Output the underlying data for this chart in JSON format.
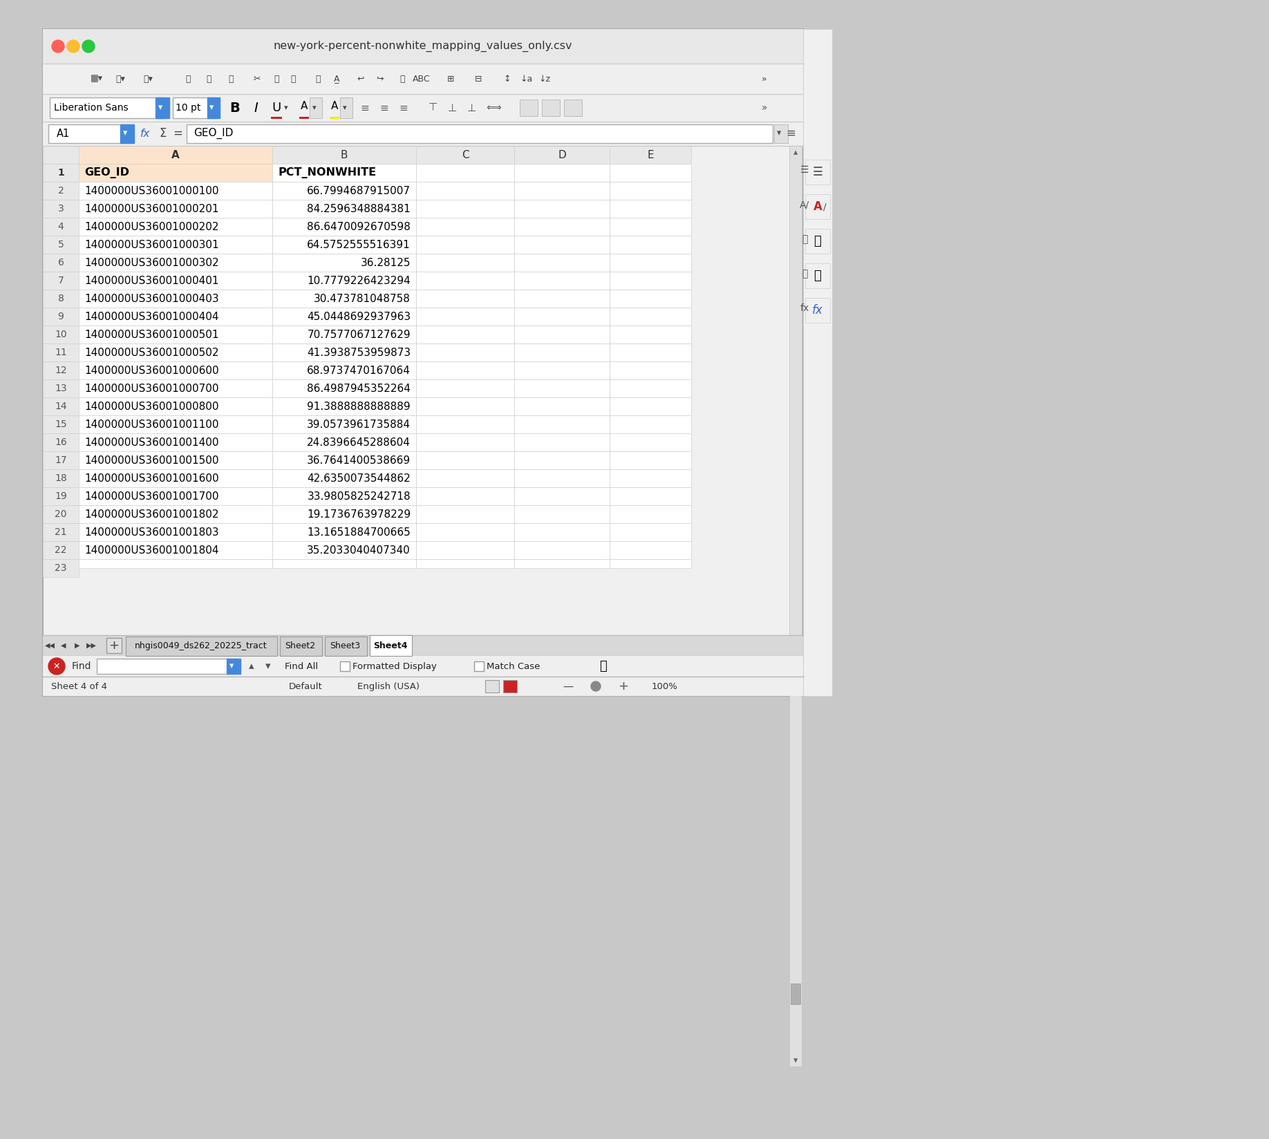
{
  "title": "new-york-percent-nonwhite_mapping_values_only.csv",
  "cell_ref": "A1",
  "formula_bar_text": "GEO_ID",
  "font_name": "Liberation Sans",
  "font_size_str": "10 pt",
  "col_A_header": "A",
  "col_B_header": "B",
  "col_C_header": "C",
  "col_D_header": "D",
  "col_E_header": "E",
  "row1_headers": [
    "GEO_ID",
    "PCT_NONWHITE"
  ],
  "rows": [
    [
      "1400000US36001000100",
      "66.7994687915007"
    ],
    [
      "1400000US36001000201",
      "84.2596348884381"
    ],
    [
      "1400000US36001000202",
      "86.6470092670598"
    ],
    [
      "1400000US36001000301",
      "64.5752555516391"
    ],
    [
      "1400000US36001000302",
      "36.28125"
    ],
    [
      "1400000US36001000401",
      "10.7779226423294"
    ],
    [
      "1400000US36001000403",
      "30.473781048758"
    ],
    [
      "1400000US36001000404",
      "45.0448692937963"
    ],
    [
      "1400000US36001000501",
      "70.7577067127629"
    ],
    [
      "1400000US36001000502",
      "41.3938753959873"
    ],
    [
      "1400000US36001000600",
      "68.9737470167064"
    ],
    [
      "1400000US36001000700",
      "86.4987945352264"
    ],
    [
      "1400000US36001000800",
      "91.3888888888889"
    ],
    [
      "1400000US36001001100",
      "39.0573961735884"
    ],
    [
      "1400000US36001001400",
      "24.8396645288604"
    ],
    [
      "1400000US36001001500",
      "36.7641400538669"
    ],
    [
      "1400000US36001001600",
      "42.6350073544862"
    ],
    [
      "1400000US36001001700",
      "33.9805825242718"
    ],
    [
      "1400000US36001001802",
      "19.1736763978229"
    ],
    [
      "1400000US36001001803",
      "13.1651884700665"
    ],
    [
      "1400000US36001001804",
      "35.2033040407340"
    ]
  ],
  "sheet_tabs": [
    "nhgis0049_ds262_20225_tract",
    "Sheet2",
    "Sheet3",
    "Sheet4"
  ],
  "active_tab_idx": 3,
  "bg_color": "#c8c8c8",
  "window_bg": "#f0f0f0",
  "titlebar_bg": "#e8e8e8",
  "toolbar_bg": "#efefef",
  "col_header_bg": "#e8e8e8",
  "col_A_selected_bg": "#fce4cc",
  "row1_geo_bg": "#fce4cc",
  "cell_white": "#ffffff",
  "grid_color": "#d0d0d0",
  "scrollbar_bg": "#e0e0e0",
  "scrollbar_thumb": "#b0b0b0",
  "tab_active_bg": "#ffffff",
  "tab_inactive_bg": "#d0d0d0",
  "status_bar_bg": "#efefef",
  "find_bar_bg": "#efefef",
  "figure_width": 18.36,
  "figure_height": 16.48
}
